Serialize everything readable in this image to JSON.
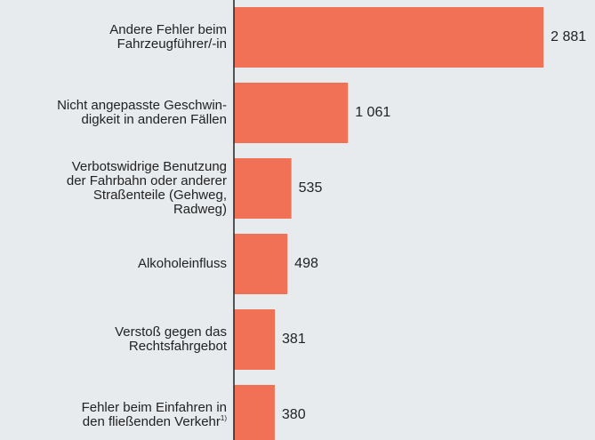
{
  "chart_data": {
    "type": "bar",
    "orientation": "horizontal",
    "categories": [
      "Andere Fehler beim\nFahrzeugführer/-in",
      "Nicht angepasste Geschwin-\ndigkeit in anderen Fällen",
      "Verbotswidrige Benutzung\nder Fahrbahn oder anderer\nStraßenteile (Gehweg,\nRadweg)",
      "Alkoholeinfluss",
      "Verstoß gegen das\nRechtsfahrgebot",
      "Fehler beim Einfahren in\nden fließenden Verkehr"
    ],
    "category_notes": [
      null,
      null,
      null,
      null,
      null,
      "1)"
    ],
    "values": [
      2881,
      1061,
      535,
      498,
      381,
      380
    ],
    "value_labels": [
      "2 881",
      "1 061",
      "535",
      "498",
      "381",
      "380"
    ],
    "color": "#f07155",
    "xlim": [
      0,
      3360
    ]
  }
}
